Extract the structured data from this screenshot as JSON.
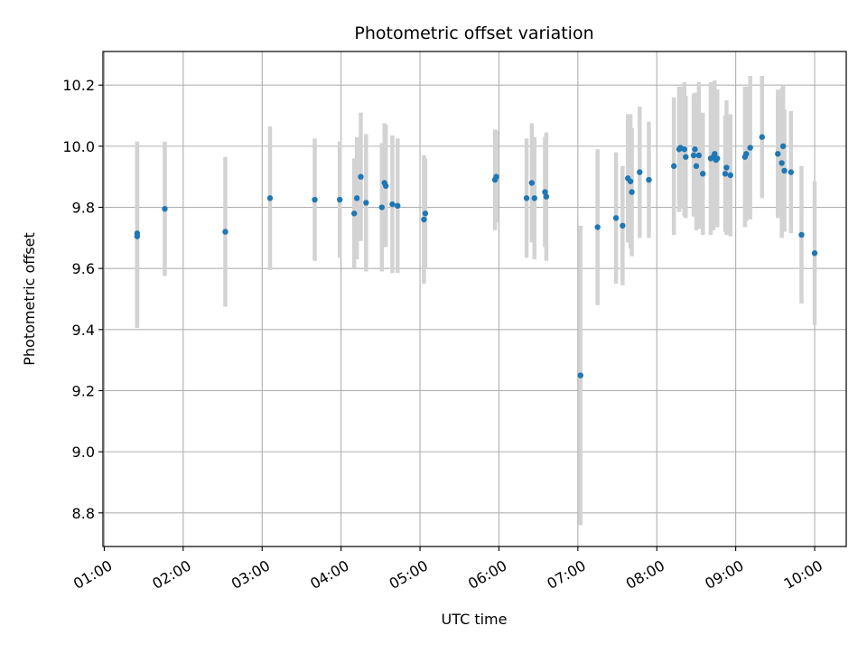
{
  "chart_data": {
    "type": "scatter",
    "title": "Photometric offset variation",
    "xlabel": "UTC time",
    "ylabel": "Photometric offset",
    "xlim": [
      "00:59",
      "10:24"
    ],
    "ylim": [
      8.69,
      10.31
    ],
    "grid": true,
    "x_ticks": [
      "01:00",
      "02:00",
      "03:00",
      "04:00",
      "05:00",
      "06:00",
      "07:00",
      "08:00",
      "09:00",
      "10:00"
    ],
    "y_ticks": [
      8.8,
      9.0,
      9.2,
      9.4,
      9.6,
      9.8,
      10.0,
      10.2
    ],
    "colors": {
      "points": "#1f77b4",
      "errorbars": "#d3d3d3",
      "grid": "#b0b0b0",
      "axes": "#000000"
    },
    "series": [
      {
        "x": [
          "01:25",
          "01:25",
          "01:46",
          "02:32",
          "03:06",
          "03:40",
          "03:59",
          "04:10",
          "04:12",
          "04:15",
          "04:19",
          "04:31",
          "04:33",
          "04:34",
          "04:39",
          "04:43",
          "05:03",
          "05:04",
          "05:57",
          "05:58",
          "06:21",
          "06:25",
          "06:27",
          "06:35",
          "06:36",
          "07:02",
          "07:15",
          "07:29",
          "07:34",
          "07:38",
          "07:40",
          "07:41",
          "07:47",
          "07:54",
          "08:13",
          "08:17",
          "08:18",
          "08:21",
          "08:22",
          "08:28",
          "08:29",
          "08:30",
          "08:32",
          "08:35",
          "08:41",
          "08:43",
          "08:44",
          "08:45",
          "08:46",
          "08:52",
          "08:53",
          "08:56",
          "09:07",
          "09:08",
          "09:11",
          "09:20",
          "09:32",
          "09:35",
          "09:36",
          "09:37",
          "09:42",
          "09:50",
          "10:00"
        ],
        "y": [
          9.705,
          9.715,
          9.795,
          9.72,
          9.83,
          9.825,
          9.825,
          9.78,
          9.83,
          9.9,
          9.815,
          9.8,
          9.88,
          9.87,
          9.81,
          9.805,
          9.76,
          9.78,
          9.89,
          9.9,
          9.83,
          9.88,
          9.83,
          9.85,
          9.835,
          9.25,
          9.735,
          9.765,
          9.74,
          9.895,
          9.885,
          9.85,
          9.915,
          9.89,
          9.935,
          9.99,
          9.995,
          9.99,
          9.965,
          9.97,
          9.99,
          9.935,
          9.97,
          9.91,
          9.96,
          9.965,
          9.975,
          9.955,
          9.96,
          9.91,
          9.93,
          9.905,
          9.965,
          9.975,
          9.995,
          10.03,
          9.975,
          9.945,
          10.0,
          9.92,
          9.915,
          9.71,
          9.65
        ],
        "yerr": [
          0.3,
          0.3,
          0.22,
          0.245,
          0.235,
          0.2,
          0.19,
          0.18,
          0.2,
          0.21,
          0.225,
          0.21,
          0.195,
          0.2,
          0.225,
          0.22,
          0.21,
          0.18,
          0.165,
          0.15,
          0.195,
          0.195,
          0.2,
          0.18,
          0.21,
          0.49,
          0.255,
          0.215,
          0.195,
          0.21,
          0.22,
          0.21,
          0.215,
          0.19,
          0.225,
          0.205,
          0.2,
          0.22,
          0.2,
          0.2,
          0.185,
          0.21,
          0.24,
          0.2,
          0.25,
          0.24,
          0.24,
          0.22,
          0.225,
          0.19,
          0.22,
          0.2,
          0.23,
          0.22,
          0.235,
          0.2,
          0.21,
          0.245,
          0.2,
          0.2,
          0.2,
          0.225,
          0.235
        ]
      }
    ]
  }
}
